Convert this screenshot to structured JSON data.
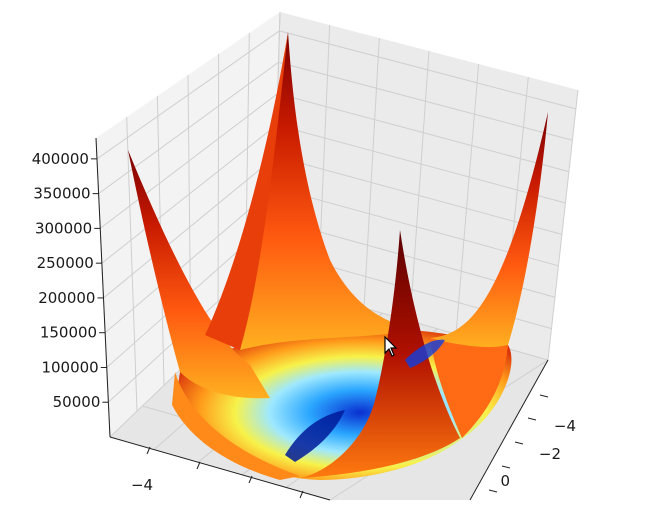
{
  "chart_data": {
    "type": "surface3d",
    "title": "",
    "xlabel": "",
    "ylabel": "",
    "zlabel": "",
    "colormap": "jet",
    "grid": true,
    "z_ticks": [
      50000,
      100000,
      150000,
      200000,
      250000,
      300000,
      350000,
      400000
    ],
    "z_tick_labels": [
      "50000",
      "100000",
      "150000",
      "200000",
      "250000",
      "300000",
      "350000",
      "400000"
    ],
    "zlim": [
      0,
      430000
    ],
    "x_tick_labels_visible": [
      "−4"
    ],
    "y_tick_labels_visible": [
      "−4",
      "−2",
      "0"
    ],
    "xlim": [
      -5,
      5
    ],
    "ylim": [
      -5,
      5
    ],
    "peaks": [
      {
        "corner": "back-left",
        "z": 400000
      },
      {
        "corner": "back",
        "z": 420000
      },
      {
        "corner": "front-right",
        "z": 270000
      },
      {
        "corner": "right",
        "z": 360000
      }
    ],
    "valley_min_z": 0
  },
  "colors": {
    "surface_low": "#0000b0",
    "surface_mid": "#9ee8ff",
    "surface_high": "#7a0000",
    "grid": "#d0d0d0",
    "pane_left": "#f2f2f2",
    "pane_back": "#ebebeb",
    "pane_floor": "#e8e8e8"
  }
}
